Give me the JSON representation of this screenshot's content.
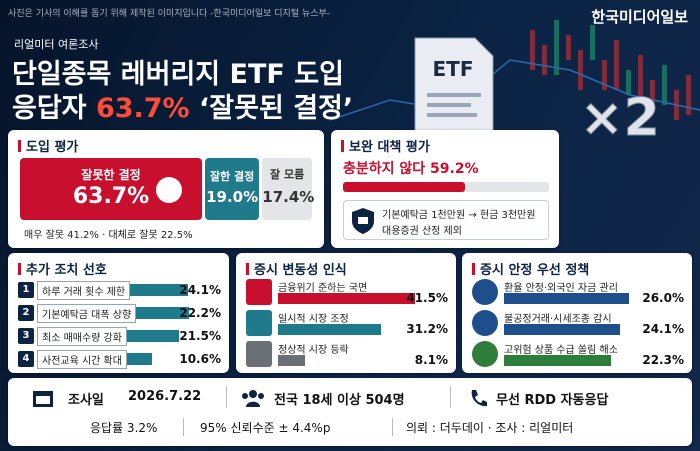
{
  "header": {
    "caption": "사진은 기사의 이해를 돕기 위해 제작된 이미지입니다 -한국미디어일보 디지털 뉴스부-",
    "brand": "한국미디어일보",
    "kicker": "리얼미터 여론조사",
    "title_line1": "단일종목 레버리지 ETF 도입",
    "title_line2_prefix": "응답자",
    "title_line2_value": "63.7%",
    "title_line2_suffix": "‘잘못된 결정’",
    "etf_label": "ETF",
    "multiplier": "×2"
  },
  "adoption": {
    "title": "도입 평가",
    "segments": [
      {
        "label": "잘못한 결정",
        "value": 63.7,
        "value_label": "63.7%",
        "color": "#c8102e"
      },
      {
        "label": "잘한 결정",
        "value": 19.0,
        "value_label": "19.0%",
        "color": "#1f7a8c"
      },
      {
        "label": "잘 모름",
        "value": 17.4,
        "value_label": "17.4%",
        "color": "#e3e5e8"
      }
    ],
    "detail": "매우 잘못 41.2% · 대체로 잘못 22.5%"
  },
  "safeguard": {
    "title": "보완 대책 평가",
    "label": "충분하지 않다",
    "value": 59.2,
    "value_label": "59.2%",
    "color": "#c8102e",
    "note_line1": "기본예탁금 1천만원 → 현금 3천만원",
    "note_line2": "대용증권 산정 제외"
  },
  "measures": {
    "title": "추가 조치 선호",
    "color": "#1f7a8c",
    "items": [
      {
        "badge": "1",
        "label": "하루 거래 횟수 제한",
        "value": 24.1,
        "value_label": "24.1%"
      },
      {
        "badge": "2",
        "label": "기본예탁금 대폭 상향",
        "value": 22.2,
        "value_label": "22.2%"
      },
      {
        "badge": "3",
        "label": "최소 매매수량 강화",
        "value": 21.5,
        "value_label": "21.5%"
      },
      {
        "badge": "4",
        "label": "사전교육 시간 확대",
        "value": 10.6,
        "value_label": "10.6%"
      }
    ]
  },
  "volatility": {
    "title": "증시 변동성 인식",
    "items": [
      {
        "label": "금융위기 준하는 국면",
        "value": 41.5,
        "value_label": "41.5%",
        "color": "#c8102e"
      },
      {
        "label": "일시적 시장 조정",
        "value": 31.2,
        "value_label": "31.2%",
        "color": "#1f7a8c"
      },
      {
        "label": "정상적 시장 등락",
        "value": 8.1,
        "value_label": "8.1%",
        "color": "#6b6f76"
      }
    ]
  },
  "policy": {
    "title": "증시 안정 우선 정책",
    "items": [
      {
        "label": "환율 안정·외국인 자금 관리",
        "value": 26.0,
        "value_label": "26.0%",
        "color": "#1f4e8c"
      },
      {
        "label": "불공정거래·시세조종 감시",
        "value": 24.1,
        "value_label": "24.1%",
        "color": "#1f4e8c"
      },
      {
        "label": "고위험 상품 수급 쏠림 해소",
        "value": 22.3,
        "value_label": "22.3%",
        "color": "#2e7d3a"
      }
    ]
  },
  "footer": {
    "date_label": "조사일",
    "date": "2026.7.22",
    "sample": "전국 18세 이상 504명",
    "method": "무선 RDD 자동응답",
    "response_rate": "응답률 3.2%",
    "confidence": "95% 신뢰수준 ± 4.4%p",
    "sponsor": "의뢰 : 더두데이 · 조사 : 리얼미터"
  }
}
